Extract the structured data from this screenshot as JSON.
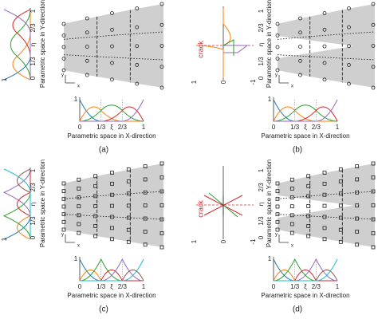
{
  "panels": [
    {
      "caption": "(a)",
      "x_axis_label": "Parametric space in X-direction",
      "y_axis_label": "Parametric space in Y-direction",
      "x_ticks": [
        "0",
        "1/3",
        "ξ",
        "2/3",
        "1"
      ],
      "y_ticks": [
        "0",
        "1/3",
        "η",
        "2/3",
        "1"
      ],
      "basis_max": "1",
      "y_basis_max": "1",
      "coord_labels": [
        "x",
        "y"
      ]
    },
    {
      "caption": "(b)",
      "x_axis_label": "Parametric space in X-direction",
      "y_axis_label": "Parametric space in Y-direction",
      "x_ticks": [
        "0",
        "1/3",
        "ξ",
        "2/3",
        "1"
      ],
      "y_ticks": [
        "0",
        "1/3",
        "η",
        "2/3",
        "1"
      ],
      "basis_max": "1",
      "crack": "crack",
      "crack_ticks": [
        "1",
        "0",
        "-1"
      ],
      "coord_labels": [
        "x",
        "y"
      ]
    },
    {
      "caption": "(c)",
      "x_axis_label": "Parametric space in X-direction",
      "y_axis_label": "Parametric space in Y-direction",
      "x_ticks": [
        "0",
        "1/3",
        "ξ",
        "2/3",
        "1"
      ],
      "y_ticks": [
        "0",
        "1/3",
        "η",
        "2/3",
        "1"
      ],
      "basis_max": "1",
      "y_basis_max": "1",
      "coord_labels": [
        "x",
        "y"
      ]
    },
    {
      "caption": "(d)",
      "x_axis_label": "Parametric space in X-direction",
      "y_axis_label": "Parametric space in Y-direction",
      "x_ticks": [
        "0",
        "1/3",
        "ξ",
        "2/3",
        "1"
      ],
      "y_ticks": [
        "0",
        "1/3",
        "η",
        "2/3",
        "1"
      ],
      "basis_max": "1",
      "crack": "crack",
      "crack_ticks": [
        "1",
        "0",
        "-1"
      ],
      "coord_labels": [
        "x",
        "y"
      ]
    }
  ]
}
